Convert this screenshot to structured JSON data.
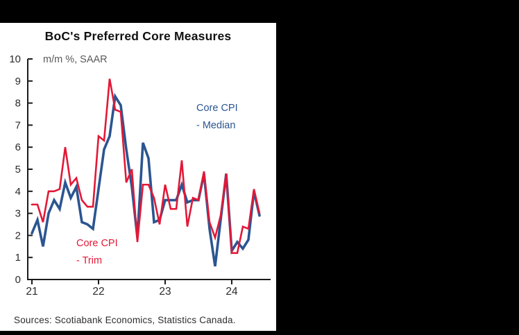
{
  "panel": {
    "title": "BoC's Preferred Core Measures",
    "subtitle": "m/m %, SAAR",
    "source": "Sources: Scotiabank Economics, Statistics Canada."
  },
  "colors": {
    "median_blue": "#2b5591",
    "trim_red": "#e31837",
    "axis": "#1a1a1a",
    "tick_label": "#2b2b2b",
    "subtitle_gray": "#58595b",
    "background": "#000000",
    "panel_bg": "#ffffff"
  },
  "chart_data": {
    "type": "line",
    "title": "BoC's Preferred Core Measures",
    "subtitle": "m/m %, SAAR",
    "xlabel": "",
    "ylabel": "m/m %, SAAR",
    "ylim": [
      0,
      10
    ],
    "yticks": [
      0,
      1,
      2,
      3,
      4,
      5,
      6,
      7,
      8,
      9,
      10
    ],
    "grid": false,
    "x_start_month": "2021-01",
    "x_end_month": "2024-06",
    "xticks": [
      {
        "label": "21",
        "month_index": 0
      },
      {
        "label": "22",
        "month_index": 12
      },
      {
        "label": "23",
        "month_index": 24
      },
      {
        "label": "24",
        "month_index": 36
      }
    ],
    "months": [
      "2021-01",
      "2021-02",
      "2021-03",
      "2021-04",
      "2021-05",
      "2021-06",
      "2021-07",
      "2021-08",
      "2021-09",
      "2021-10",
      "2021-11",
      "2021-12",
      "2022-01",
      "2022-02",
      "2022-03",
      "2022-04",
      "2022-05",
      "2022-06",
      "2022-07",
      "2022-08",
      "2022-09",
      "2022-10",
      "2022-11",
      "2022-12",
      "2023-01",
      "2023-02",
      "2023-03",
      "2023-04",
      "2023-05",
      "2023-06",
      "2023-07",
      "2023-08",
      "2023-09",
      "2023-10",
      "2023-11",
      "2023-12",
      "2024-01",
      "2024-02",
      "2024-03",
      "2024-04",
      "2024-05",
      "2024-06"
    ],
    "series": [
      {
        "name": "Core CPI - Median",
        "legend_lines": [
          "Core CPI",
          "- Median"
        ],
        "color": "#2b5591",
        "values": [
          2.1,
          2.7,
          1.5,
          3.0,
          3.6,
          3.2,
          4.4,
          3.7,
          4.2,
          2.6,
          2.5,
          2.3,
          4.1,
          5.9,
          6.5,
          8.3,
          7.9,
          5.9,
          4.2,
          1.9,
          6.2,
          5.5,
          2.6,
          2.7,
          3.6,
          3.6,
          3.6,
          4.3,
          3.5,
          3.6,
          3.6,
          4.8,
          2.3,
          0.6,
          2.7,
          4.8,
          1.3,
          1.7,
          1.4,
          1.8,
          4.0,
          2.9
        ]
      },
      {
        "name": "Core CPI - Trim",
        "legend_lines": [
          "Core CPI",
          "- Trim"
        ],
        "color": "#e31837",
        "values": [
          3.4,
          3.4,
          2.6,
          4.0,
          4.0,
          4.1,
          6.0,
          4.3,
          4.6,
          3.6,
          3.3,
          3.3,
          6.5,
          6.3,
          9.1,
          7.7,
          7.6,
          4.4,
          5.0,
          1.7,
          4.3,
          4.3,
          3.7,
          2.5,
          4.3,
          3.2,
          3.2,
          5.4,
          2.4,
          3.7,
          3.6,
          4.9,
          2.6,
          1.9,
          2.9,
          4.8,
          1.2,
          1.2,
          2.4,
          2.3,
          4.1,
          3.0
        ]
      }
    ],
    "legend_position": {
      "median": "upper-right-of-peak",
      "trim": "lower-left-center"
    }
  }
}
